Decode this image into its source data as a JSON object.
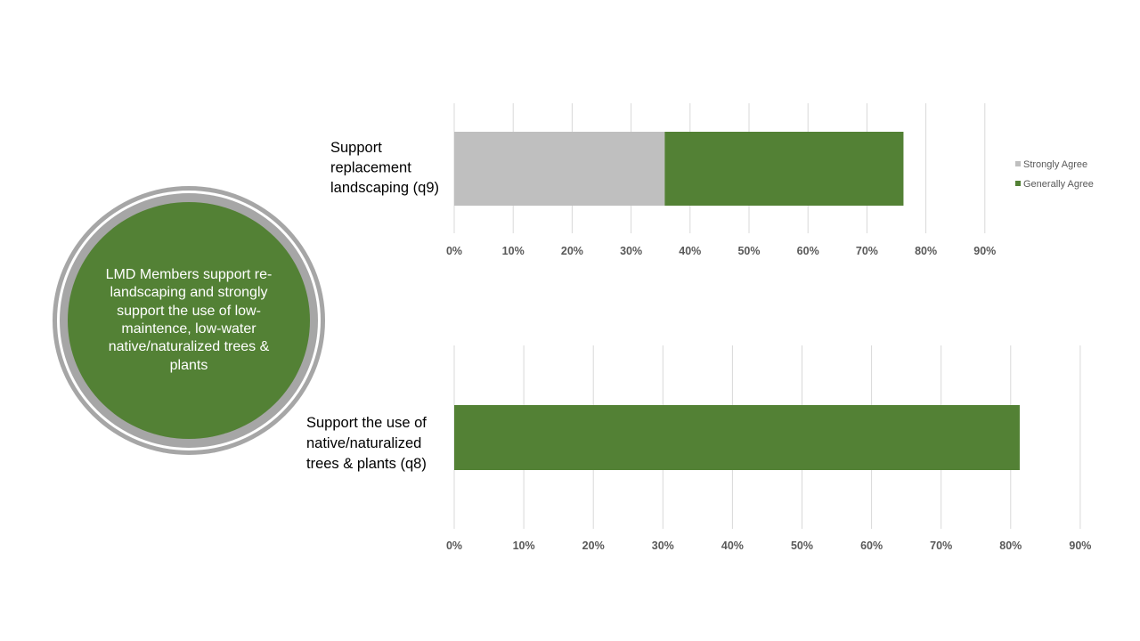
{
  "callout": {
    "text": "LMD Members support re-landscaping and strongly support the use of low-maintence, low-water native/naturalized trees & plants"
  },
  "colors": {
    "strongly_agree": "#bfbfbf",
    "generally_agree": "#538135",
    "gridline": "#d9d9d9",
    "circle_fill": "#538135",
    "circle_ring": "#a6a6a6"
  },
  "chart_data": [
    {
      "type": "bar",
      "orientation": "horizontal",
      "stacked": true,
      "categories": [
        "Support replacement landscaping (q9)"
      ],
      "category_lines": [
        "Support",
        "replacement",
        "landscaping (q9)"
      ],
      "series": [
        {
          "name": "Strongly Agree",
          "values": [
            0.357
          ],
          "color": "#bfbfbf"
        },
        {
          "name": "Generally Agree",
          "values": [
            0.405
          ],
          "color": "#538135"
        }
      ],
      "xlim": [
        0,
        0.9
      ],
      "x_ticks": [
        "0%",
        "10%",
        "20%",
        "30%",
        "40%",
        "50%",
        "60%",
        "70%",
        "80%",
        "90%"
      ],
      "grid": true,
      "legend": "right"
    },
    {
      "type": "bar",
      "orientation": "horizontal",
      "categories": [
        "Support the use of native/naturalized trees & plants (q8)"
      ],
      "category_lines": [
        "Support the use of",
        "native/naturalized",
        "trees & plants (q8)"
      ],
      "series": [
        {
          "values": [
            0.813
          ],
          "color": "#538135"
        }
      ],
      "xlim": [
        0,
        0.9
      ],
      "x_ticks": [
        "0%",
        "10%",
        "20%",
        "30%",
        "40%",
        "50%",
        "60%",
        "70%",
        "80%",
        "90%"
      ],
      "grid": true
    }
  ]
}
